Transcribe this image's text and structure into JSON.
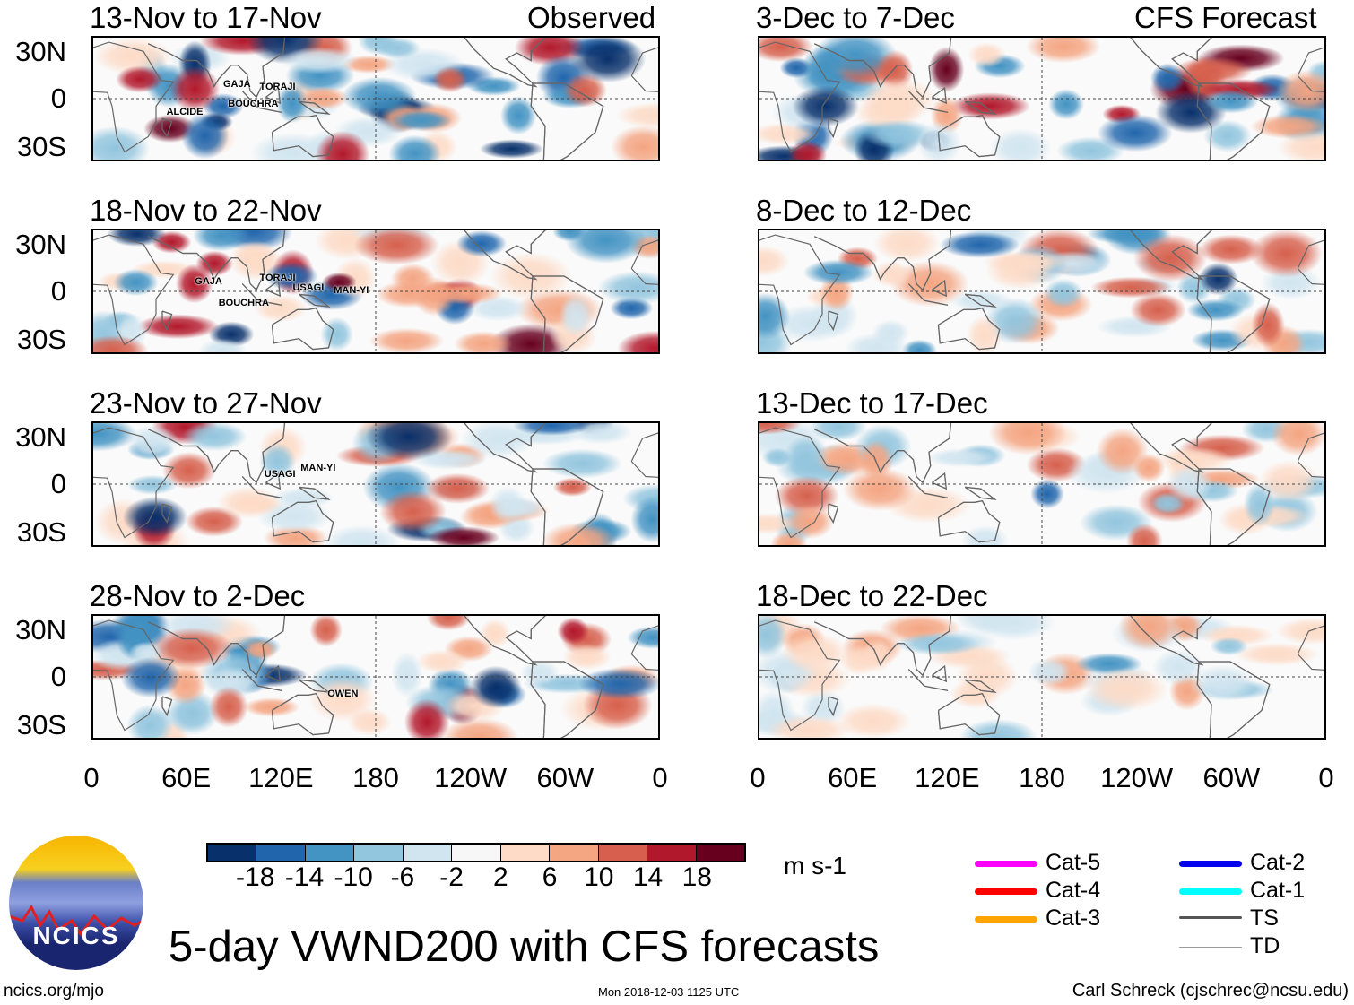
{
  "title": "5-day VWND200 with CFS forecasts",
  "site": "ncics.org/mjo",
  "timestamp": "Mon 2018-12-03 1125 UTC",
  "credit": "Carl Schreck (cjschrec@ncsu.edu)",
  "logo_text": "NCICS",
  "chart_data": {
    "type": "heatmap",
    "variable": "200-hPa meridional wind anomaly",
    "units": "m s-1",
    "lat_ticks": [
      "30N",
      "0",
      "30S"
    ],
    "lon_ticks": [
      "0",
      "60E",
      "120E",
      "180",
      "120W",
      "60W",
      "0"
    ],
    "lon_tick_values": [
      0,
      60,
      120,
      180,
      240,
      300,
      360
    ],
    "lat_range": [
      -40,
      40
    ],
    "colorbar": {
      "levels": [
        "-18",
        "-14",
        "-10",
        "-6",
        "-2",
        "2",
        "6",
        "10",
        "14",
        "18"
      ],
      "colors": [
        "#08306b",
        "#2166ac",
        "#4393c3",
        "#92c5de",
        "#d1e5f0",
        "#f7f7f7",
        "#fddbc7",
        "#f4a582",
        "#d6604d",
        "#b2182b",
        "#67001f"
      ]
    },
    "column_labels": {
      "observed": "Observed",
      "forecast": "CFS Forecast"
    },
    "panels": [
      {
        "title": "13-Nov to 17-Nov",
        "type": "observed",
        "storms": [
          {
            "name": "GAJA",
            "lon": 88,
            "lat": 10
          },
          {
            "name": "TORAJI",
            "lon": 111,
            "lat": 8
          },
          {
            "name": "BOUCHRA",
            "lon": 91,
            "lat": -3
          },
          {
            "name": "ALCIDE",
            "lon": 52,
            "lat": -8
          }
        ]
      },
      {
        "title": "18-Nov to 22-Nov",
        "type": "observed",
        "storms": [
          {
            "name": "GAJA",
            "lon": 70,
            "lat": 7
          },
          {
            "name": "TORAJI",
            "lon": 111,
            "lat": 9
          },
          {
            "name": "USAGI",
            "lon": 132,
            "lat": 3
          },
          {
            "name": "MAN-YI",
            "lon": 158,
            "lat": 1
          },
          {
            "name": "BOUCHRA",
            "lon": 85,
            "lat": -7
          }
        ]
      },
      {
        "title": "23-Nov to 27-Nov",
        "type": "observed",
        "storms": [
          {
            "name": "USAGI",
            "lon": 114,
            "lat": 7
          },
          {
            "name": "MAN-YI",
            "lon": 137,
            "lat": 11
          }
        ]
      },
      {
        "title": "28-Nov to 2-Dec",
        "type": "observed",
        "storms": [
          {
            "name": "OWEN",
            "lon": 154,
            "lat": -10
          }
        ]
      },
      {
        "title": "3-Dec to 7-Dec",
        "type": "forecast",
        "storms": []
      },
      {
        "title": "8-Dec to 12-Dec",
        "type": "forecast",
        "storms": []
      },
      {
        "title": "13-Dec to 17-Dec",
        "type": "forecast",
        "storms": []
      },
      {
        "title": "18-Dec to 22-Dec",
        "type": "forecast",
        "storms": []
      }
    ],
    "legend": [
      {
        "label": "Cat-5",
        "color": "#ff00ff"
      },
      {
        "label": "Cat-4",
        "color": "#ff0000"
      },
      {
        "label": "Cat-3",
        "color": "#ffa500"
      },
      {
        "label": "Cat-2",
        "color": "#0000ee"
      },
      {
        "label": "Cat-1",
        "color": "#00ffff"
      },
      {
        "label": "TS",
        "color": "#555555"
      },
      {
        "label": "TD",
        "color": "#999999"
      }
    ]
  }
}
